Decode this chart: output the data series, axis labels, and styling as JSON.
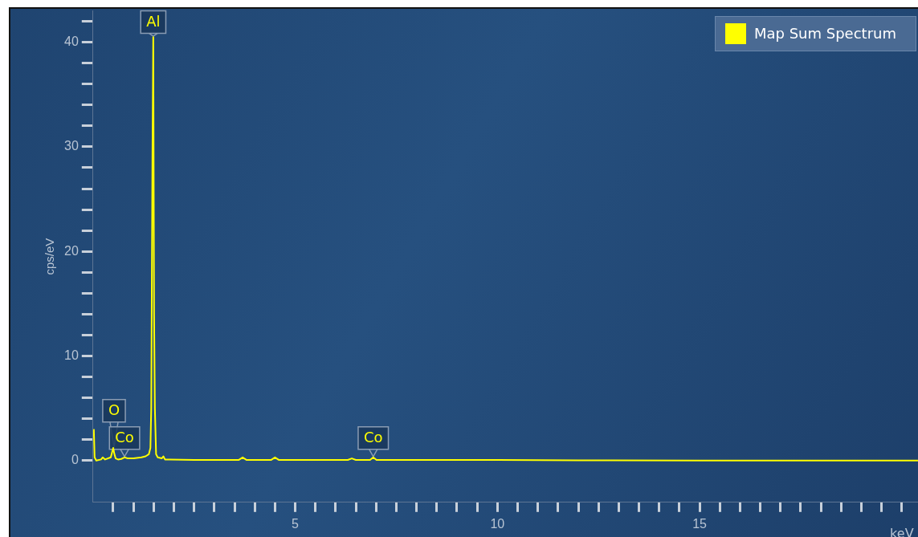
{
  "chart_data": {
    "type": "line",
    "ylabel": "cps/eV",
    "xlabel": "keV",
    "xlim": [
      0,
      20.4
    ],
    "ylim": [
      -4,
      43
    ],
    "xticks": [
      {
        "value": 0.5,
        "label": null
      },
      {
        "value": 1,
        "label": null
      },
      {
        "value": 1.5,
        "label": null
      },
      {
        "value": 2,
        "label": null
      },
      {
        "value": 2.5,
        "label": null
      },
      {
        "value": 3,
        "label": null
      },
      {
        "value": 3.5,
        "label": null
      },
      {
        "value": 4,
        "label": null
      },
      {
        "value": 4.5,
        "label": null
      },
      5,
      {
        "value": 5.5,
        "label": null
      },
      {
        "value": 6,
        "label": null
      },
      {
        "value": 6.5,
        "label": null
      },
      {
        "value": 7,
        "label": null
      },
      {
        "value": 7.5,
        "label": null
      },
      {
        "value": 8,
        "label": null
      },
      {
        "value": 8.5,
        "label": null
      },
      {
        "value": 9,
        "label": null
      },
      {
        "value": 9.5,
        "label": null
      },
      10,
      {
        "value": 10.5,
        "label": null
      },
      {
        "value": 11,
        "label": null
      },
      {
        "value": 11.5,
        "label": null
      },
      {
        "value": 12,
        "label": null
      },
      {
        "value": 12.5,
        "label": null
      },
      {
        "value": 13,
        "label": null
      },
      {
        "value": 13.5,
        "label": null
      },
      {
        "value": 14,
        "label": null
      },
      {
        "value": 14.5,
        "label": null
      },
      15,
      {
        "value": 15.5,
        "label": null
      },
      {
        "value": 16,
        "label": null
      },
      {
        "value": 16.5,
        "label": null
      },
      {
        "value": 17,
        "label": null
      },
      {
        "value": 17.5,
        "label": null
      },
      {
        "value": 18,
        "label": null
      },
      {
        "value": 18.5,
        "label": null
      },
      {
        "value": 19,
        "label": null
      },
      {
        "value": 19.5,
        "label": null
      },
      {
        "value": 20,
        "label": null
      }
    ],
    "yticks": [
      0,
      {
        "value": 2,
        "label": null
      },
      {
        "value": 4,
        "label": null
      },
      {
        "value": 6,
        "label": null
      },
      {
        "value": 8,
        "label": null
      },
      10,
      {
        "value": 12,
        "label": null
      },
      {
        "value": 14,
        "label": null
      },
      {
        "value": 16,
        "label": null
      },
      {
        "value": 18,
        "label": null
      },
      20,
      {
        "value": 22,
        "label": null
      },
      {
        "value": 24,
        "label": null
      },
      {
        "value": 26,
        "label": null
      },
      {
        "value": 28,
        "label": null
      },
      30,
      {
        "value": 32,
        "label": null
      },
      {
        "value": 34,
        "label": null
      },
      {
        "value": 36,
        "label": null
      },
      {
        "value": 38,
        "label": null
      },
      40,
      {
        "value": 42,
        "label": null
      }
    ],
    "grid": false,
    "legend": "top right",
    "marker": "none",
    "series": [
      {
        "name": "Map Sum Spectrum",
        "color": "#ffff00",
        "x": [
          0.02,
          0.04,
          0.08,
          0.2,
          0.24,
          0.3,
          0.44,
          0.5,
          0.53,
          0.56,
          0.62,
          0.7,
          0.78,
          0.86,
          1.0,
          1.2,
          1.3,
          1.38,
          1.42,
          1.44,
          1.47,
          1.49,
          1.51,
          1.53,
          1.56,
          1.6,
          1.7,
          1.74,
          1.78,
          1.9,
          2.5,
          3.6,
          3.7,
          3.8,
          4.4,
          4.5,
          4.6,
          6.3,
          6.4,
          6.5,
          6.85,
          6.93,
          7.01,
          8,
          10,
          12,
          15,
          20.4
        ],
        "values": [
          3,
          0.3,
          0,
          0.1,
          0.3,
          0.1,
          0.3,
          1.2,
          0.6,
          0.2,
          0.1,
          0.15,
          0.3,
          0.2,
          0.2,
          0.3,
          0.4,
          0.6,
          1.2,
          5,
          29,
          40.5,
          14,
          5,
          0.6,
          0.3,
          0.2,
          0.4,
          0.1,
          0.1,
          0.05,
          0.05,
          0.3,
          0.05,
          0.05,
          0.3,
          0.05,
          0.05,
          0.2,
          0.05,
          0.05,
          0.3,
          0.05,
          0.05,
          0.05,
          0.02,
          0,
          0
        ]
      }
    ],
    "annotations": [
      {
        "text": "O",
        "x": 0.52,
        "y": 1.2
      },
      {
        "text": "Co",
        "x": 0.78,
        "y": 0.3
      },
      {
        "text": "Al",
        "x": 1.49,
        "y": 40.5
      },
      {
        "text": "Co",
        "x": 6.93,
        "y": 0.3
      }
    ]
  }
}
